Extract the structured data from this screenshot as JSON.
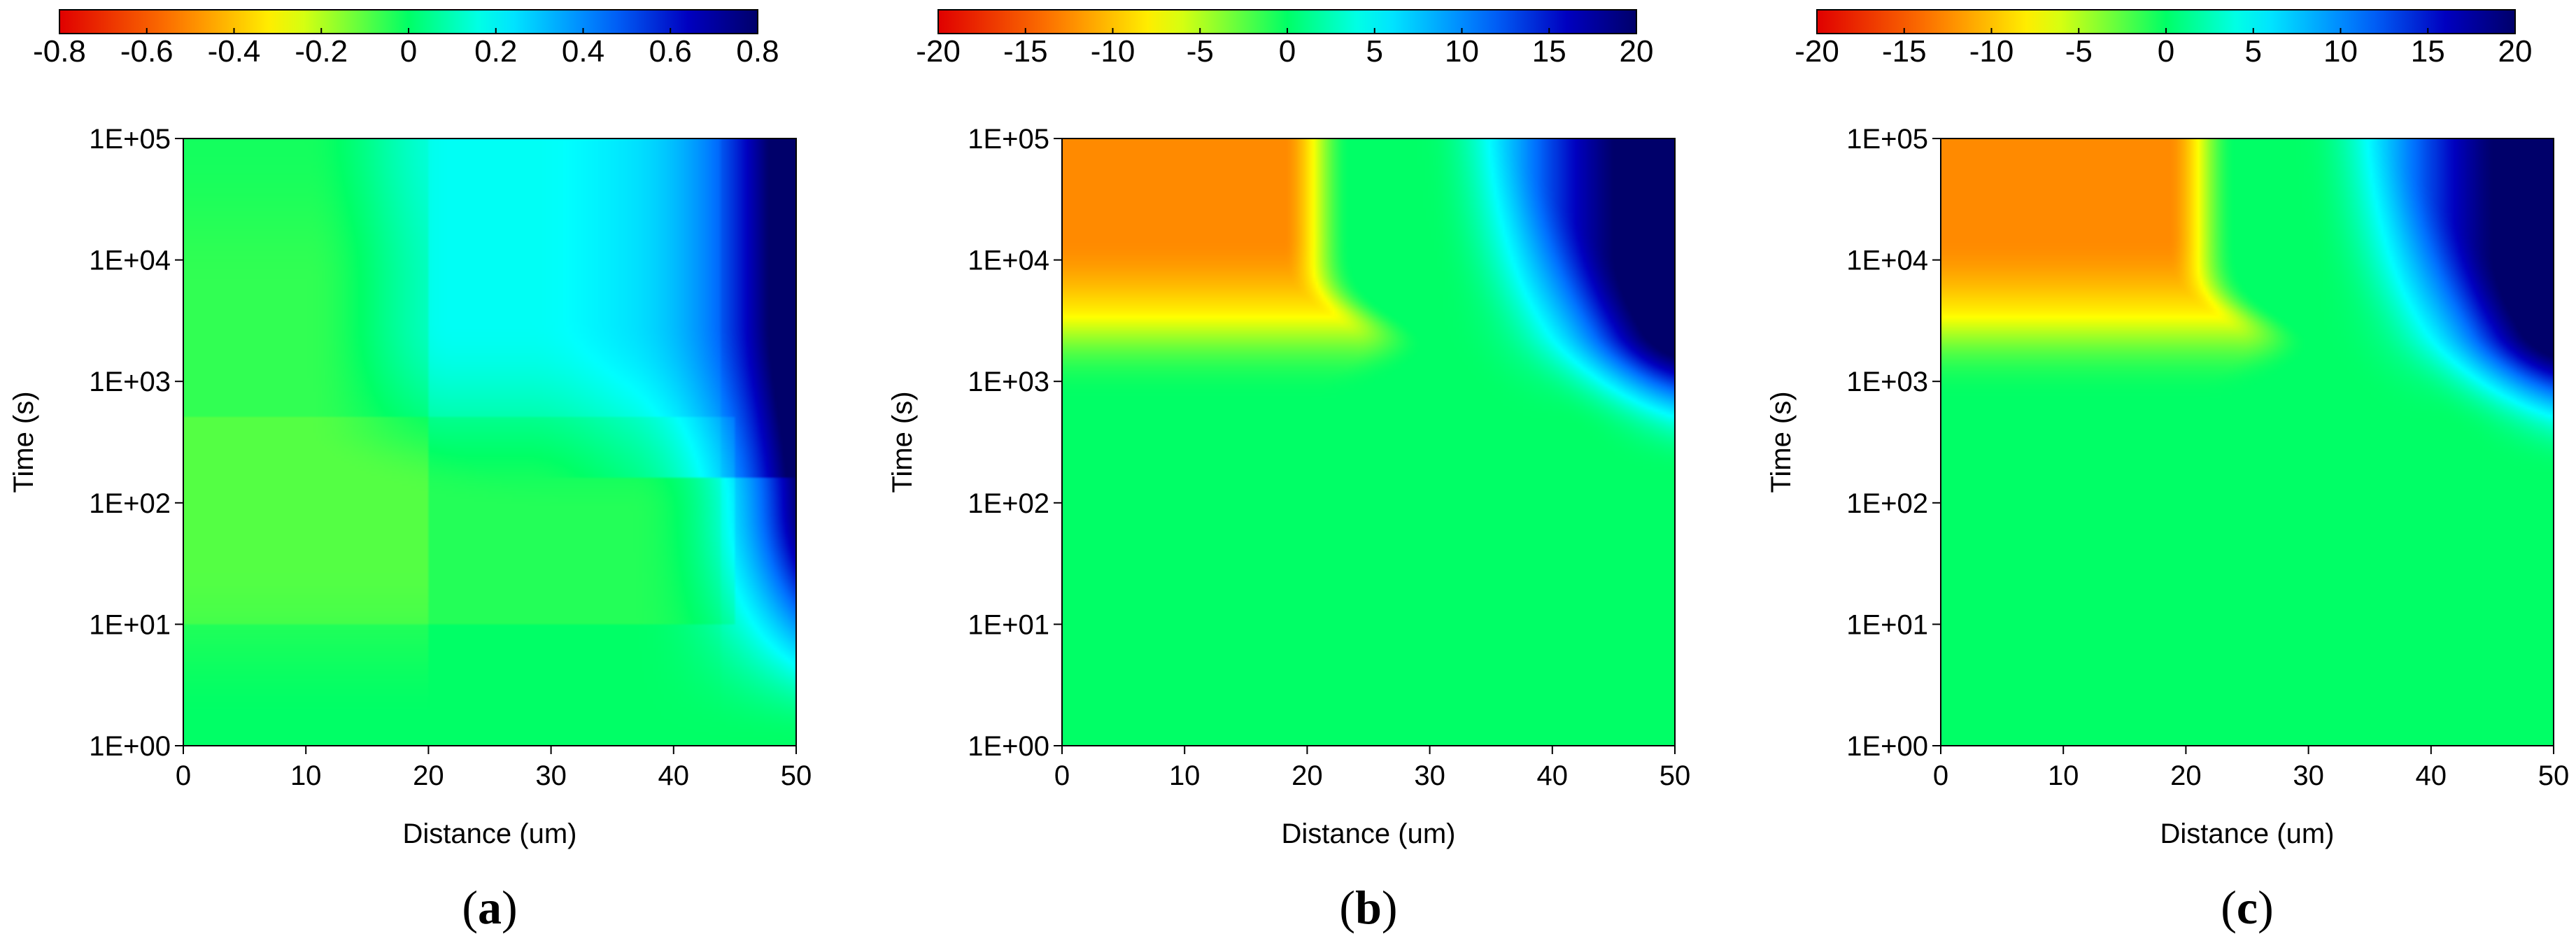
{
  "chart_data": [
    {
      "type": "heatmap",
      "panel_label": "a",
      "xlabel": "Distance (um)",
      "ylabel": "Time (s)",
      "xlim": [
        0,
        50
      ],
      "ylim": [
        1,
        100000
      ],
      "yscale": "log",
      "x_ticks": [
        0,
        10,
        20,
        30,
        40,
        50
      ],
      "x_tick_labels": [
        "0",
        "10",
        "20",
        "30",
        "40",
        "50"
      ],
      "y_ticks": [
        1,
        10,
        100,
        1000,
        10000,
        100000
      ],
      "y_tick_labels": [
        "1E+00",
        "1E+01",
        "1E+02",
        "1E+03",
        "1E+04",
        "1E+05"
      ],
      "colorbar": {
        "range": [
          -0.8,
          0.8
        ],
        "tick_values": [
          -0.8,
          -0.6,
          -0.4,
          -0.2,
          0,
          0.2,
          0.4,
          0.6,
          0.8
        ],
        "tick_labels": [
          "-0.8",
          "-0.6",
          "-0.4",
          "-0.2",
          "0",
          "0.2",
          "0.4",
          "0.6",
          "0.8"
        ],
        "colormap": [
          "#e00000",
          "#ff7a00",
          "#ffff00",
          "#00ff66",
          "#00ffff",
          "#0070ff",
          "#0000c0",
          "#00006a"
        ]
      },
      "grid": false,
      "field_description": "mostly near 0 (green); values rise to ~0.3 near x=40 and ~0.6-0.8 at x=50 for t above ~100 s; slight negative band for x below 20"
    },
    {
      "type": "heatmap",
      "panel_label": "b",
      "xlabel": "Distance (um)",
      "ylabel": "Time (s)",
      "xlim": [
        0,
        50
      ],
      "ylim": [
        1,
        100000
      ],
      "yscale": "log",
      "x_ticks": [
        0,
        10,
        20,
        30,
        40,
        50
      ],
      "x_tick_labels": [
        "0",
        "10",
        "20",
        "30",
        "40",
        "50"
      ],
      "y_ticks": [
        1,
        10,
        100,
        1000,
        10000,
        100000
      ],
      "y_tick_labels": [
        "1E+00",
        "1E+01",
        "1E+02",
        "1E+03",
        "1E+04",
        "1E+05"
      ],
      "colorbar": {
        "range": [
          -20,
          20
        ],
        "tick_values": [
          -20,
          -15,
          -10,
          -5,
          0,
          5,
          10,
          15,
          20
        ],
        "tick_labels": [
          "-20",
          "-15",
          "-10",
          "-5",
          "0",
          "5",
          "10",
          "15",
          "20"
        ],
        "colormap": [
          "#e00000",
          "#ff7a00",
          "#ffff00",
          "#00ff66",
          "#00ffff",
          "#0070ff",
          "#0000c0",
          "#00006a"
        ]
      },
      "grid": false,
      "field_description": "0 below ~1E+03 s; above it negative region (about -12) for x below 20 um, positive region up to ~20 for x above 35 um"
    },
    {
      "type": "heatmap",
      "panel_label": "c",
      "xlabel": "Distance (um)",
      "ylabel": "Time (s)",
      "xlim": [
        0,
        50
      ],
      "ylim": [
        1,
        100000
      ],
      "yscale": "log",
      "x_ticks": [
        0,
        10,
        20,
        30,
        40,
        50
      ],
      "x_tick_labels": [
        "0",
        "10",
        "20",
        "30",
        "40",
        "50"
      ],
      "y_ticks": [
        1,
        10,
        100,
        1000,
        10000,
        100000
      ],
      "y_tick_labels": [
        "1E+00",
        "1E+01",
        "1E+02",
        "1E+03",
        "1E+04",
        "1E+05"
      ],
      "colorbar": {
        "range": [
          -20,
          20
        ],
        "tick_values": [
          -20,
          -15,
          -10,
          -5,
          0,
          5,
          10,
          15,
          20
        ],
        "tick_labels": [
          "-20",
          "-15",
          "-10",
          "-5",
          "0",
          "5",
          "10",
          "15",
          "20"
        ],
        "colormap": [
          "#e00000",
          "#ff7a00",
          "#ffff00",
          "#00ff66",
          "#00ffff",
          "#0070ff",
          "#0000c0",
          "#00006a"
        ]
      },
      "grid": false,
      "field_description": "nearly identical to panel b: 0 below ~1E+03 s; negative region (about -12) for x below 20 um, positive region up to ~20 for x above 35 um"
    }
  ]
}
